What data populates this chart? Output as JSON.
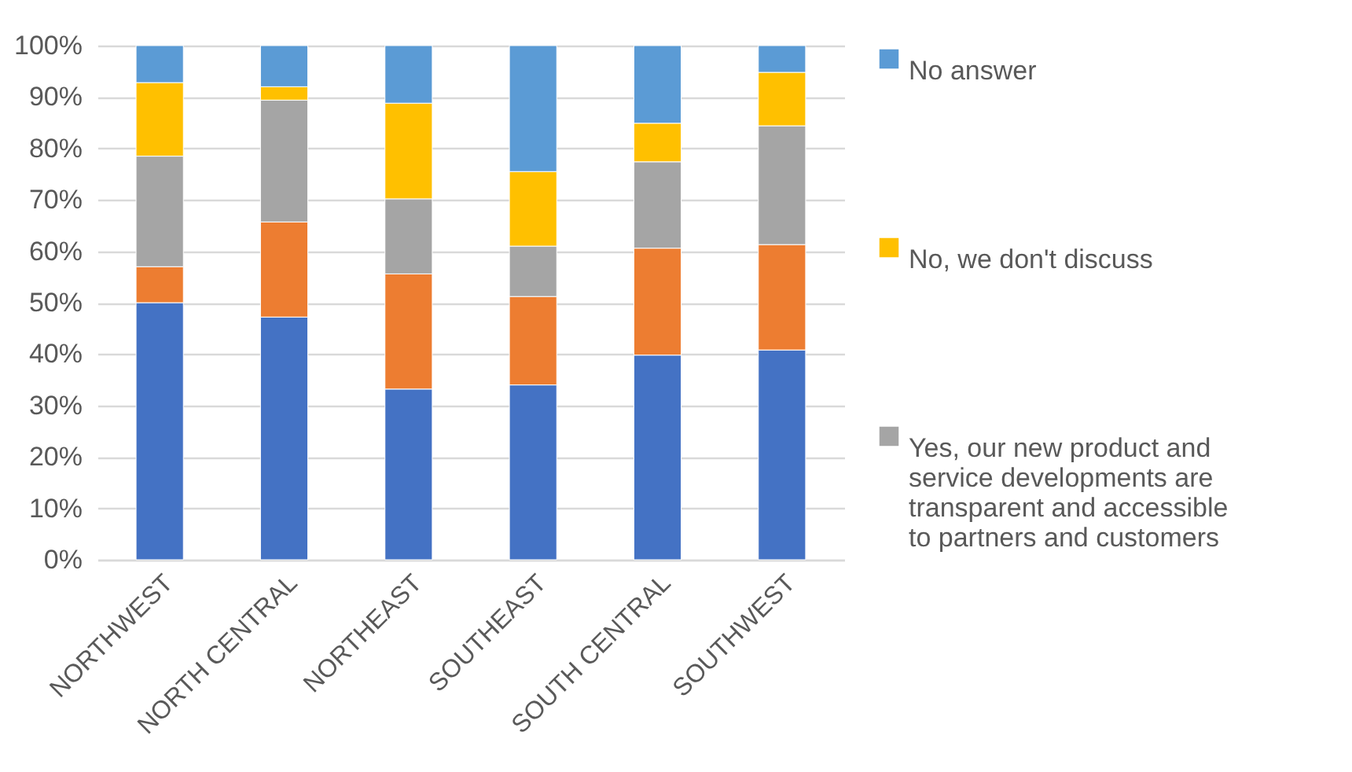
{
  "chart_data": {
    "type": "bar",
    "stacked": true,
    "categories": [
      "NORTHWEST",
      "NORTH CENTRAL",
      "NORTHEAST",
      "SOUTHEAST",
      "SOUTH CENTRAL",
      "SOUTHWEST"
    ],
    "series": [
      {
        "color": "#4472c4",
        "values": [
          50.0,
          47.2,
          33.2,
          34.0,
          39.8,
          40.8
        ]
      },
      {
        "color": "#ed7d31",
        "values": [
          7.0,
          18.5,
          22.4,
          17.2,
          20.8,
          20.5
        ]
      },
      {
        "name": "Yes, our new product and service developments are transparent and accessible to partners and customers",
        "color": "#a5a5a5",
        "values": [
          21.5,
          23.7,
          14.6,
          9.8,
          16.8,
          23.1
        ]
      },
      {
        "name": "No, we don't discuss",
        "color": "#ffc000",
        "values": [
          14.3,
          2.6,
          18.6,
          14.5,
          7.5,
          10.4
        ]
      },
      {
        "name": "No answer",
        "color": "#5b9bd5",
        "values": [
          7.2,
          8.0,
          11.2,
          24.5,
          15.1,
          5.2
        ]
      }
    ],
    "ylim": [
      0,
      100
    ],
    "yticks": [
      {
        "value": 0,
        "label": "0%"
      },
      {
        "value": 10,
        "label": "10%"
      },
      {
        "value": 20,
        "label": "20%"
      },
      {
        "value": 30,
        "label": "30%"
      },
      {
        "value": 40,
        "label": "40%"
      },
      {
        "value": 50,
        "label": "50%"
      },
      {
        "value": 60,
        "label": "60%"
      },
      {
        "value": 70,
        "label": "70%"
      },
      {
        "value": 80,
        "label": "80%"
      },
      {
        "value": 90,
        "label": "90%"
      },
      {
        "value": 100,
        "label": "100%"
      }
    ],
    "grid": "y",
    "legend": "right"
  }
}
